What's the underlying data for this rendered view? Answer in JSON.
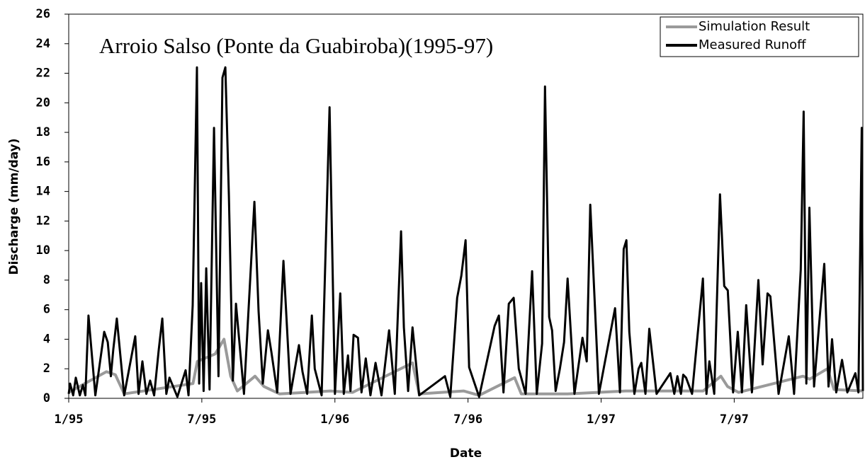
{
  "chart_data": {
    "type": "line",
    "title": "Arroio Salso (Ponte da Guabiroba)(1995-97)",
    "x_label": "Date",
    "y_label": "Discharge (mm/day)",
    "xlim": [
      0,
      35.8
    ],
    "xticks": [
      {
        "value": 0,
        "label": "1/95"
      },
      {
        "value": 6,
        "label": "7/95"
      },
      {
        "value": 12,
        "label": "1/96"
      },
      {
        "value": 18,
        "label": "7/96"
      },
      {
        "value": 24,
        "label": "1/97"
      },
      {
        "value": 30,
        "label": "7/97"
      }
    ],
    "ylim": [
      0,
      26
    ],
    "yticks": [
      0,
      2,
      4,
      6,
      8,
      10,
      12,
      14,
      16,
      18,
      20,
      22,
      24,
      26
    ],
    "legend": "upper right",
    "series": [
      {
        "name": "Simulation Result",
        "color": "#9a9a9a",
        "x": [
          0,
          1.7,
          2.1,
          2.5,
          5.6,
          5.8,
          6.6,
          7.0,
          7.3,
          7.6,
          8.4,
          8.8,
          9.5,
          11.8,
          12.8,
          15.5,
          15.8,
          17.8,
          18.5,
          20.1,
          20.4,
          22.5,
          25.1,
          28.6,
          29.4,
          29.7,
          30.2,
          33.1,
          33.4,
          34.2,
          34.5,
          35.8
        ],
        "values": [
          0.4,
          1.8,
          1.6,
          0.3,
          1.0,
          2.5,
          3.0,
          4.0,
          1.5,
          0.5,
          1.5,
          0.8,
          0.3,
          0.5,
          0.4,
          2.4,
          0.3,
          0.5,
          0.2,
          1.4,
          0.3,
          0.3,
          0.5,
          0.5,
          1.5,
          0.8,
          0.4,
          1.5,
          1.3,
          2.0,
          0.6,
          0.5
        ]
      },
      {
        "name": "Measured Runoff",
        "color": "#000000",
        "x": [
          0,
          0.06,
          0.2,
          0.32,
          0.5,
          0.64,
          0.75,
          0.89,
          1.2,
          1.6,
          1.76,
          1.9,
          2.01,
          2.17,
          2.5,
          3.0,
          3.15,
          3.32,
          3.5,
          3.67,
          3.85,
          4.06,
          4.22,
          4.4,
          4.54,
          4.9,
          5.27,
          5.4,
          5.59,
          5.78,
          5.88,
          5.97,
          6.08,
          6.2,
          6.35,
          6.55,
          6.75,
          6.93,
          7.06,
          7.22,
          7.4,
          7.54,
          7.9,
          8.37,
          8.56,
          8.75,
          8.98,
          9.14,
          9.4,
          9.68,
          10.0,
          10.38,
          10.54,
          10.75,
          10.96,
          11.09,
          11.4,
          11.76,
          12.0,
          12.24,
          12.4,
          12.59,
          12.7,
          12.84,
          13.04,
          13.2,
          13.39,
          13.6,
          13.83,
          14.1,
          14.44,
          14.7,
          14.98,
          15.11,
          15.3,
          15.5,
          15.8,
          16.96,
          17.2,
          17.51,
          17.7,
          17.89,
          18.05,
          18.5,
          19.2,
          19.39,
          19.6,
          19.84,
          20.06,
          20.29,
          20.6,
          20.89,
          21.1,
          21.34,
          21.47,
          21.66,
          21.79,
          21.95,
          22.14,
          22.33,
          22.49,
          22.8,
          23.16,
          23.35,
          23.51,
          23.9,
          24.63,
          24.85,
          25.02,
          25.14,
          25.27,
          25.5,
          25.69,
          25.81,
          26.0,
          26.17,
          26.5,
          27.12,
          27.3,
          27.44,
          27.6,
          27.7,
          27.83,
          28.1,
          28.59,
          28.75,
          28.88,
          29.1,
          29.36,
          29.55,
          29.71,
          29.95,
          30.16,
          30.35,
          30.54,
          30.8,
          31.09,
          31.28,
          31.5,
          31.63,
          32.0,
          32.46,
          32.7,
          33.0,
          33.13,
          33.25,
          33.39,
          33.6,
          33.87,
          34.06,
          34.25,
          34.41,
          34.6,
          34.86,
          35.1,
          35.46,
          35.6,
          35.75,
          35.8
        ],
        "values": [
          0.3,
          1.0,
          0.2,
          1.4,
          0.2,
          0.9,
          0.2,
          5.6,
          0.2,
          4.5,
          3.8,
          1.5,
          3.3,
          5.4,
          0.2,
          4.2,
          0.3,
          2.5,
          0.3,
          1.2,
          0.2,
          3.3,
          5.4,
          0.3,
          1.4,
          0.1,
          1.9,
          0.2,
          6.3,
          22.4,
          1.0,
          7.8,
          0.5,
          8.8,
          0.6,
          18.3,
          1.5,
          21.7,
          22.4,
          13.7,
          1.2,
          6.4,
          0.3,
          13.3,
          5.9,
          1.0,
          4.6,
          3.1,
          0.4,
          9.3,
          0.3,
          3.6,
          1.8,
          0.3,
          5.6,
          2.0,
          0.2,
          19.7,
          0.3,
          7.1,
          0.3,
          2.9,
          0.5,
          4.3,
          4.1,
          0.4,
          2.7,
          0.2,
          2.4,
          0.2,
          4.6,
          0.3,
          11.3,
          4.8,
          0.5,
          4.8,
          0.2,
          1.5,
          0.1,
          6.8,
          8.3,
          10.7,
          2.1,
          0.1,
          4.9,
          5.6,
          0.4,
          6.4,
          6.8,
          2.0,
          0.3,
          8.6,
          0.3,
          3.7,
          21.1,
          5.5,
          4.6,
          0.5,
          2.0,
          3.8,
          8.1,
          0.3,
          4.1,
          2.5,
          13.1,
          0.3,
          6.1,
          0.4,
          10.1,
          10.7,
          4.5,
          0.3,
          2.0,
          2.4,
          0.3,
          4.7,
          0.3,
          1.7,
          0.3,
          1.5,
          0.3,
          1.6,
          1.4,
          0.3,
          8.1,
          0.3,
          2.5,
          0.3,
          13.8,
          7.6,
          7.3,
          0.4,
          4.5,
          0.4,
          6.3,
          0.4,
          8.0,
          2.3,
          7.1,
          6.9,
          0.3,
          4.2,
          0.3,
          8.7,
          19.4,
          1.0,
          12.9,
          0.8,
          5.8,
          9.1,
          0.8,
          4.0,
          0.4,
          2.6,
          0.4,
          1.7,
          0.4,
          18.3,
          0.5
        ]
      }
    ]
  }
}
